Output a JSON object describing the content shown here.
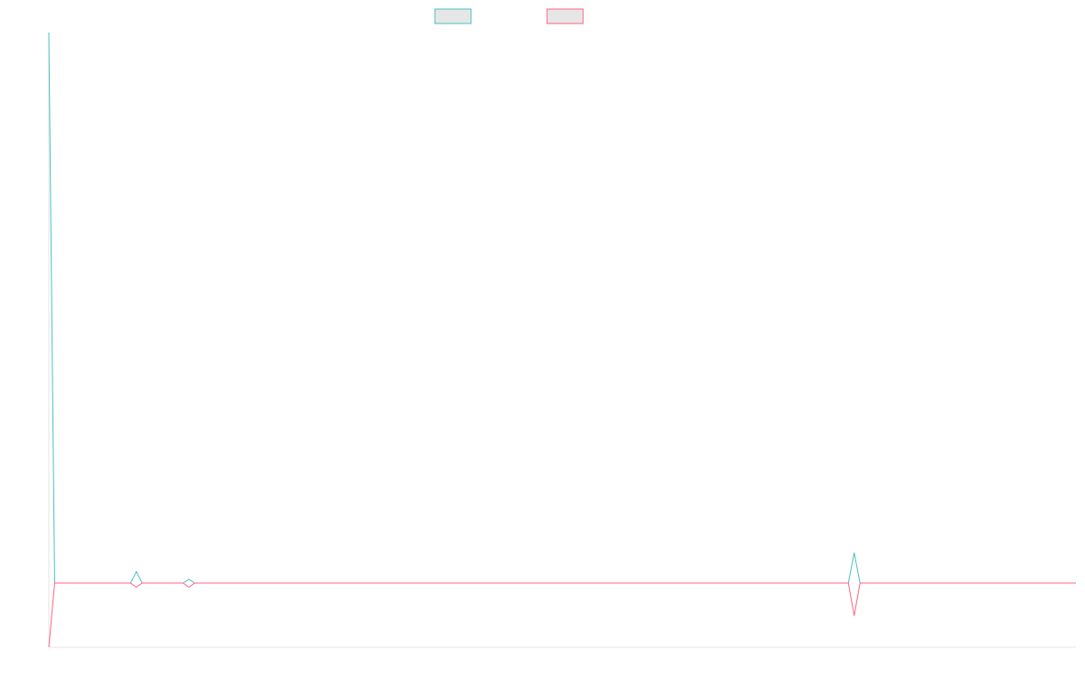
{
  "chart_data": {
    "type": "line",
    "title": "",
    "xlabel": "",
    "ylabel": "",
    "grid": false,
    "legend_position": "top-center",
    "x_points": 177,
    "series": [
      {
        "name": "",
        "color": "#4bc0c0",
        "legend_fill": "#e6e6e6",
        "points": [
          {
            "i": 0,
            "v": 580
          },
          {
            "i": 1,
            "v": 0
          },
          {
            "i": 14,
            "v": 0
          },
          {
            "i": 15,
            "v": 12
          },
          {
            "i": 16,
            "v": 0
          },
          {
            "i": 23,
            "v": 0
          },
          {
            "i": 24,
            "v": 4
          },
          {
            "i": 25,
            "v": 0
          },
          {
            "i": 137,
            "v": 0
          },
          {
            "i": 138,
            "v": 32
          },
          {
            "i": 139,
            "v": 0
          },
          {
            "i": 176,
            "v": 0
          }
        ]
      },
      {
        "name": "",
        "color": "#ff6384",
        "legend_fill": "#e6e6e6",
        "points": [
          {
            "i": 0,
            "v": -63
          },
          {
            "i": 1,
            "v": 0
          },
          {
            "i": 14,
            "v": 0
          },
          {
            "i": 15,
            "v": -4
          },
          {
            "i": 16,
            "v": 0
          },
          {
            "i": 23,
            "v": 0
          },
          {
            "i": 24,
            "v": -4
          },
          {
            "i": 25,
            "v": 0
          },
          {
            "i": 137,
            "v": 0
          },
          {
            "i": 138,
            "v": -32
          },
          {
            "i": 139,
            "v": 0
          },
          {
            "i": 176,
            "v": 0
          }
        ]
      }
    ],
    "ylim": [
      -63,
      580
    ],
    "axis_color": "#e5e5e5"
  }
}
